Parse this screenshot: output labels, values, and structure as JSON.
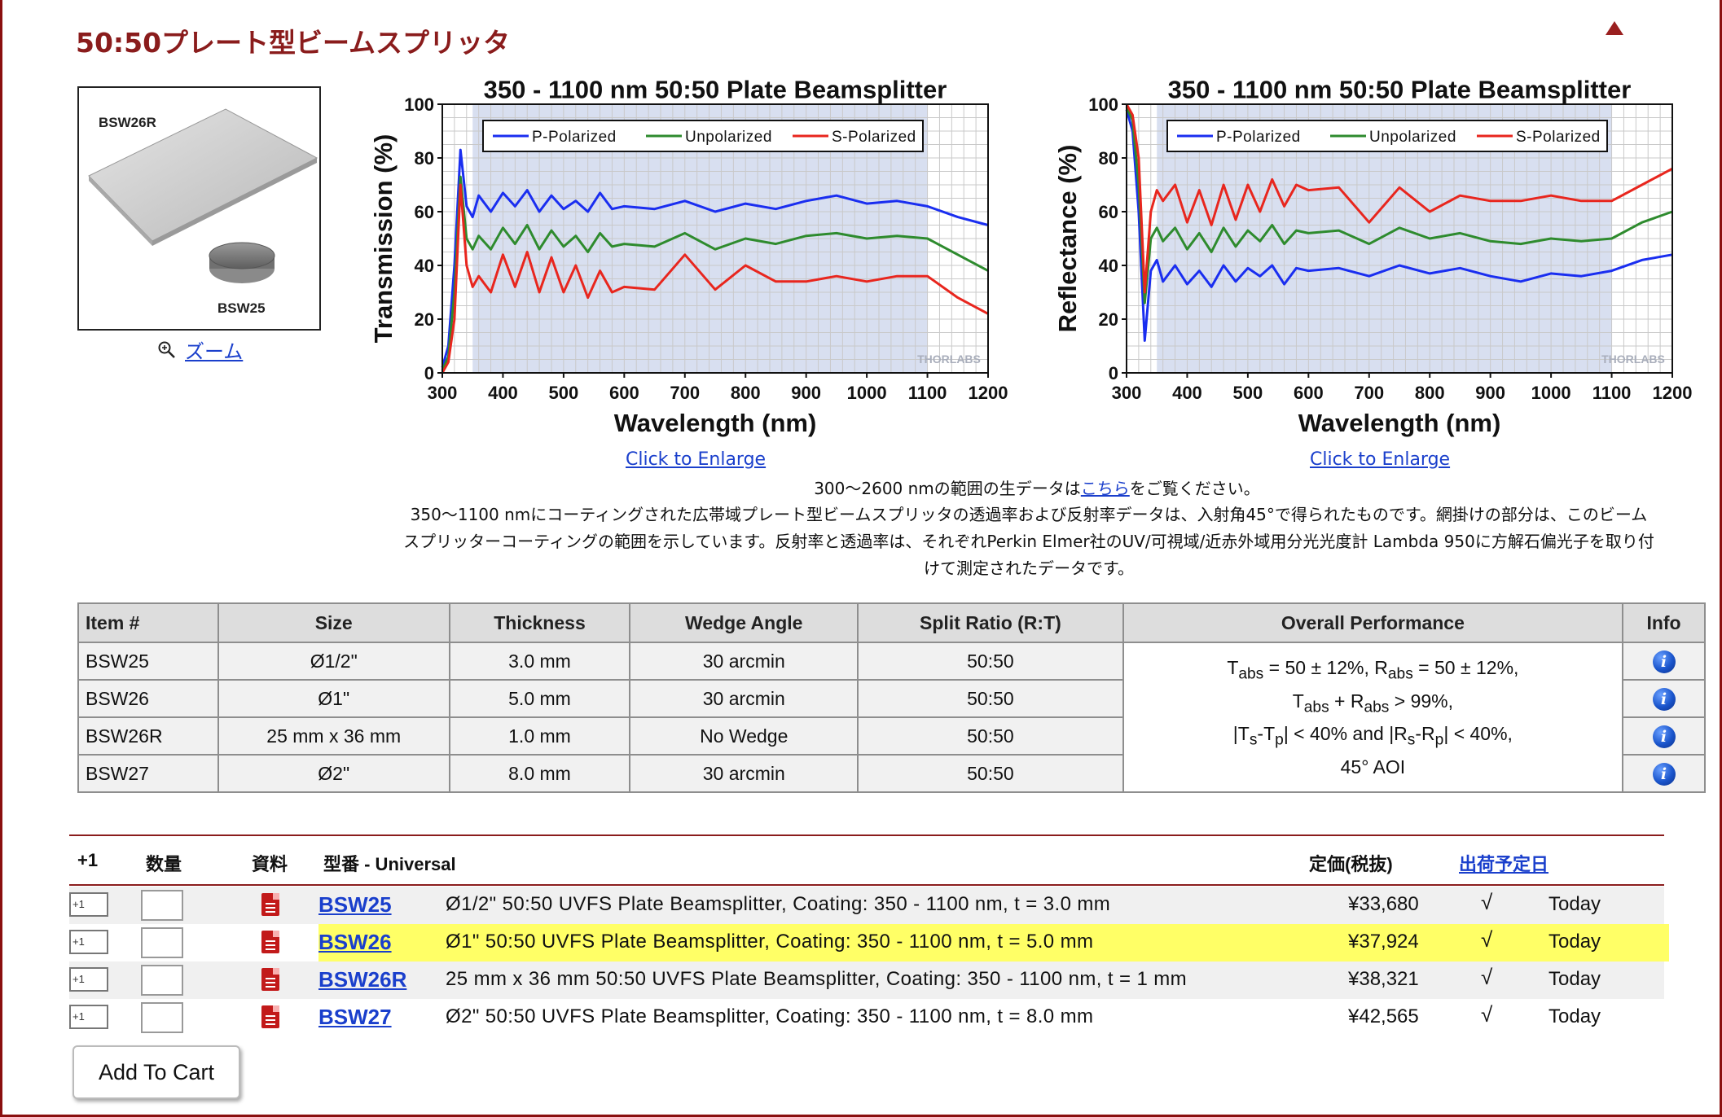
{
  "page": {
    "title": "50:50プレート型ビームスプリッタ",
    "image_labels": {
      "large": "BSW26R",
      "small": "BSW25"
    },
    "zoom_label": "ズーム"
  },
  "charts": {
    "enlarge_label": "Click to Enlarge",
    "watermark": "THORLABS"
  },
  "chart_data": [
    {
      "type": "line",
      "title": "350 - 1100 nm 50:50 Plate Beamsplitter",
      "xlabel": "Wavelength (nm)",
      "ylabel": "Transmission (%)",
      "xlim": [
        300,
        1200
      ],
      "ylim": [
        0,
        100
      ],
      "xticks": [
        300,
        400,
        500,
        600,
        700,
        800,
        900,
        1000,
        1100,
        1200
      ],
      "yticks": [
        0,
        20,
        40,
        60,
        80,
        100
      ],
      "shaded_range": [
        350,
        1100
      ],
      "legend": [
        "P-Polarized",
        "Unpolarized",
        "S-Polarized"
      ],
      "colors": [
        "#1a2ef0",
        "#2e8b2e",
        "#e8261e"
      ],
      "series": [
        {
          "name": "P-Polarized",
          "x": [
            300,
            310,
            320,
            330,
            340,
            350,
            360,
            380,
            400,
            420,
            440,
            460,
            480,
            500,
            520,
            540,
            560,
            580,
            600,
            650,
            700,
            750,
            800,
            850,
            900,
            950,
            1000,
            1050,
            1100,
            1150,
            1200
          ],
          "y": [
            2,
            10,
            40,
            83,
            62,
            58,
            66,
            60,
            67,
            62,
            68,
            60,
            66,
            61,
            64,
            60,
            67,
            61,
            62,
            61,
            64,
            60,
            63,
            61,
            64,
            66,
            63,
            64,
            62,
            58,
            55
          ]
        },
        {
          "name": "Unpolarized",
          "x": [
            300,
            310,
            320,
            330,
            340,
            350,
            360,
            380,
            400,
            420,
            440,
            460,
            480,
            500,
            520,
            540,
            560,
            580,
            600,
            650,
            700,
            750,
            800,
            850,
            900,
            950,
            1000,
            1050,
            1100,
            1150,
            1200
          ],
          "y": [
            1,
            6,
            30,
            73,
            50,
            46,
            51,
            46,
            54,
            48,
            55,
            46,
            53,
            47,
            51,
            45,
            52,
            47,
            48,
            47,
            52,
            46,
            50,
            48,
            51,
            52,
            50,
            51,
            50,
            44,
            38
          ]
        },
        {
          "name": "S-Polarized",
          "x": [
            300,
            310,
            320,
            330,
            340,
            350,
            360,
            380,
            400,
            420,
            440,
            460,
            480,
            500,
            520,
            540,
            560,
            580,
            600,
            650,
            700,
            750,
            800,
            850,
            900,
            950,
            1000,
            1050,
            1100,
            1150,
            1200
          ],
          "y": [
            0,
            4,
            20,
            70,
            40,
            32,
            36,
            30,
            44,
            32,
            45,
            30,
            43,
            30,
            40,
            28,
            38,
            30,
            32,
            31,
            44,
            31,
            40,
            34,
            34,
            36,
            34,
            36,
            36,
            28,
            22
          ]
        }
      ]
    },
    {
      "type": "line",
      "title": "350 - 1100 nm 50:50 Plate Beamsplitter",
      "xlabel": "Wavelength (nm)",
      "ylabel": "Reflectance (%)",
      "xlim": [
        300,
        1200
      ],
      "ylim": [
        0,
        100
      ],
      "xticks": [
        300,
        400,
        500,
        600,
        700,
        800,
        900,
        1000,
        1100,
        1200
      ],
      "yticks": [
        0,
        20,
        40,
        60,
        80,
        100
      ],
      "shaded_range": [
        350,
        1100
      ],
      "legend": [
        "P-Polarized",
        "Unpolarized",
        "S-Polarized"
      ],
      "colors": [
        "#1a2ef0",
        "#2e8b2e",
        "#e8261e"
      ],
      "series": [
        {
          "name": "P-Polarized",
          "x": [
            300,
            310,
            320,
            330,
            340,
            350,
            360,
            380,
            400,
            420,
            440,
            460,
            480,
            500,
            520,
            540,
            560,
            580,
            600,
            650,
            700,
            750,
            800,
            850,
            900,
            950,
            1000,
            1050,
            1100,
            1150,
            1200
          ],
          "y": [
            98,
            90,
            60,
            12,
            38,
            42,
            34,
            40,
            33,
            38,
            32,
            40,
            34,
            39,
            36,
            40,
            33,
            39,
            38,
            39,
            36,
            40,
            37,
            39,
            36,
            34,
            37,
            36,
            38,
            42,
            44
          ]
        },
        {
          "name": "Unpolarized",
          "x": [
            300,
            310,
            320,
            330,
            340,
            350,
            360,
            380,
            400,
            420,
            440,
            460,
            480,
            500,
            520,
            540,
            560,
            580,
            600,
            650,
            700,
            750,
            800,
            850,
            900,
            950,
            1000,
            1050,
            1100,
            1150,
            1200
          ],
          "y": [
            99,
            94,
            70,
            26,
            50,
            54,
            49,
            54,
            46,
            52,
            45,
            54,
            47,
            53,
            49,
            55,
            48,
            53,
            52,
            53,
            48,
            54,
            50,
            52,
            49,
            48,
            50,
            49,
            50,
            56,
            60
          ]
        },
        {
          "name": "S-Polarized",
          "x": [
            300,
            310,
            320,
            330,
            340,
            350,
            360,
            380,
            400,
            420,
            440,
            460,
            480,
            500,
            520,
            540,
            560,
            580,
            600,
            650,
            700,
            750,
            800,
            850,
            900,
            950,
            1000,
            1050,
            1100,
            1150,
            1200
          ],
          "y": [
            100,
            96,
            80,
            30,
            60,
            68,
            64,
            70,
            56,
            68,
            55,
            70,
            57,
            70,
            60,
            72,
            62,
            70,
            68,
            69,
            56,
            69,
            60,
            66,
            64,
            64,
            66,
            64,
            64,
            70,
            76
          ]
        }
      ]
    }
  ],
  "description": {
    "line1_pre": "300～2600 nmの範囲の生データは",
    "line1_link": "こちら",
    "line1_post": "をご覧ください。",
    "line2": "350～1100 nmにコーティングされた広帯域プレート型ビームスプリッタの透過率および反射率データは、入射角45°で得られたものです。網掛けの部分は、このビーム",
    "line3": "スプリッターコーティングの範囲を示しています。反射率と透過率は、それぞれPerkin Elmer社のUV/可視域/近赤外域用分光光度計 Lambda 950に方解石偏光子を取り付",
    "line4": "けて測定されたデータです。"
  },
  "spec_table": {
    "headers": [
      "Item #",
      "Size",
      "Thickness",
      "Wedge Angle",
      "Split Ratio (R:T)",
      "Overall Performance",
      "Info"
    ],
    "rows": [
      {
        "item": "BSW25",
        "size": "Ø1/2\"",
        "thickness": "3.0 mm",
        "wedge": "30 arcmin",
        "ratio": "50:50"
      },
      {
        "item": "BSW26",
        "size": "Ø1\"",
        "thickness": "5.0 mm",
        "wedge": "30 arcmin",
        "ratio": "50:50"
      },
      {
        "item": "BSW26R",
        "size": "25 mm x 36 mm",
        "thickness": "1.0 mm",
        "wedge": "No Wedge",
        "ratio": "50:50"
      },
      {
        "item": "BSW27",
        "size": "Ø2\"",
        "thickness": "8.0 mm",
        "wedge": "30 arcmin",
        "ratio": "50:50"
      }
    ],
    "performance": {
      "t": "T",
      "r": "R",
      "abs": "abs",
      "l1a": " = 50 ± 12%, ",
      "l1b": " = 50 ± 12%,",
      "l2a": " + ",
      "l2b": " > 99%,",
      "s": "s",
      "p": "p",
      "l3a": "|",
      "l3b": "-",
      "l3c": "| < 40% and |",
      "l3d": "-",
      "l3e": "| < 40%,",
      "l4": "45° AOI"
    },
    "info_glyph": "i"
  },
  "purchase": {
    "headers": {
      "plus1": "+1",
      "qty": "数量",
      "docs": "資料",
      "part": "型番 - Universal",
      "price": "定価(税抜)",
      "ship": "出荷予定日"
    },
    "cart_icon_label": "+1",
    "rows": [
      {
        "part": "BSW25",
        "desc": "Ø1/2\" 50:50 UVFS Plate Beamsplitter, Coating: 350 - 1100 nm, t = 3.0 mm",
        "price": "¥33,680",
        "check": "√",
        "ship": "Today"
      },
      {
        "part": "BSW26",
        "desc": "Ø1\" 50:50 UVFS Plate Beamsplitter, Coating: 350 - 1100 nm, t = 5.0 mm",
        "price": "¥37,924",
        "check": "√",
        "ship": "Today"
      },
      {
        "part": "BSW26R",
        "desc": "25 mm x 36 mm 50:50 UVFS Plate Beamsplitter, Coating: 350 - 1100 nm, t = 1 mm",
        "price": "¥38,321",
        "check": "√",
        "ship": "Today"
      },
      {
        "part": "BSW27",
        "desc": "Ø2\" 50:50 UVFS Plate Beamsplitter, Coating: 350 - 1100 nm, t = 8.0 mm",
        "price": "¥42,565",
        "check": "√",
        "ship": "Today"
      }
    ],
    "add_to_cart": "Add To Cart"
  }
}
